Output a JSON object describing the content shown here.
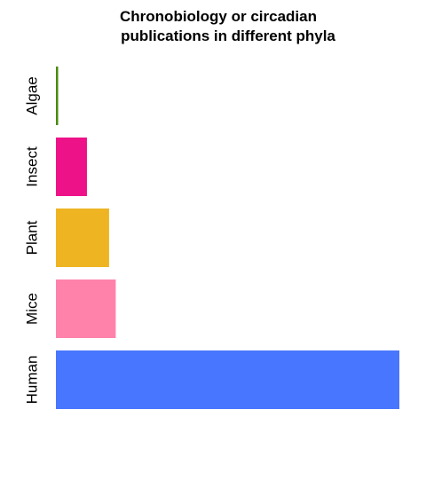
{
  "chart_data": {
    "type": "bar",
    "orientation": "horizontal",
    "title_lines": [
      "Chronobiology or circadian",
      "publications in different phyla"
    ],
    "categories": [
      "Algae",
      "Insect",
      "Plant",
      "Mice",
      "Human"
    ],
    "values": [
      1,
      14,
      24,
      27,
      155
    ],
    "colors": [
      "#4a8a10",
      "#ee1289",
      "#eeb422",
      "#ff82ab",
      "#4876ff"
    ],
    "xlim": [
      0,
      155
    ],
    "grid": false,
    "legend": false,
    "xlabel": "",
    "ylabel": ""
  }
}
